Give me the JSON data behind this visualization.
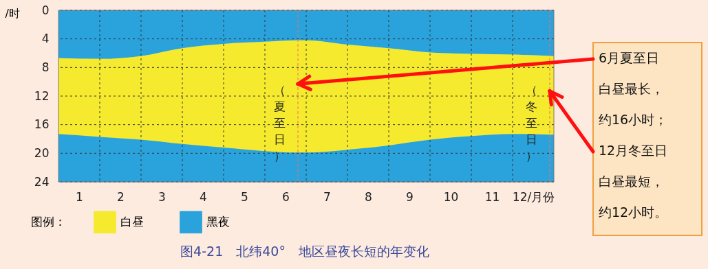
{
  "chart_data": {
    "type": "area",
    "stacked": true,
    "title": "图4-21　北纬40°　地区昼夜长短的年变化",
    "ylabel": "/时",
    "legend_title": "图例：",
    "legend": "bottom left",
    "grid": true,
    "x": [
      0,
      1,
      2,
      3,
      4,
      5,
      5.8,
      6,
      7,
      8,
      9,
      10,
      11,
      12
    ],
    "xlim": [
      0,
      12
    ],
    "xticks": [
      {
        "value": 0.5,
        "label": "1"
      },
      {
        "value": 1,
        "label": null
      },
      {
        "value": 1.5,
        "label": "2"
      },
      {
        "value": 2,
        "label": null
      },
      {
        "value": 2.5,
        "label": "3"
      },
      {
        "value": 3,
        "label": null
      },
      {
        "value": 3.5,
        "label": "4"
      },
      {
        "value": 4,
        "label": null
      },
      {
        "value": 4.5,
        "label": "5"
      },
      {
        "value": 5,
        "label": null
      },
      {
        "value": 5.5,
        "label": "6"
      },
      {
        "value": 6,
        "label": null
      },
      {
        "value": 6.5,
        "label": "7"
      },
      {
        "value": 7,
        "label": null
      },
      {
        "value": 7.5,
        "label": "8"
      },
      {
        "value": 8,
        "label": null
      },
      {
        "value": 8.5,
        "label": "9"
      },
      {
        "value": 9,
        "label": null
      },
      {
        "value": 9.5,
        "label": "10"
      },
      {
        "value": 10,
        "label": null
      },
      {
        "value": 10.5,
        "label": "11"
      },
      {
        "value": 11,
        "label": null
      },
      {
        "value": 11.5,
        "label": "12/月份"
      }
    ],
    "ylim": [
      24,
      0
    ],
    "yticks": [
      0,
      4,
      8,
      12,
      16,
      20,
      24
    ],
    "series": [
      {
        "color": "#2aa3dc",
        "values": [
          6.7,
          6.8,
          6.4,
          5.3,
          4.7,
          4.4,
          4.2,
          4.2,
          4.8,
          5.3,
          5.9,
          6.1,
          6.2,
          6.4
        ]
      },
      {
        "name": "白昼",
        "color": "#f5ea2e",
        "values": [
          10.6,
          10.9,
          11.7,
          13.4,
          14.5,
          15.3,
          15.7,
          15.7,
          14.7,
          13.6,
          12.2,
          11.5,
          11.1,
          11.0
        ]
      },
      {
        "name": "黑夜",
        "color": "#2aa3dc",
        "values": [
          6.7,
          6.3,
          5.9,
          5.3,
          4.8,
          4.3,
          4.1,
          4.1,
          4.5,
          5.1,
          5.9,
          6.4,
          6.7,
          6.6
        ]
      }
    ],
    "ref_lines": [
      {
        "axis": "x",
        "value": 5.8,
        "label": "（夏至日）",
        "color": "#f07060",
        "line_style": "dashed"
      },
      {
        "axis": "x",
        "value": 11.9,
        "label": "（冬至日）",
        "color": "#f07060",
        "line_style": "dashed"
      }
    ],
    "annotations": [
      {
        "text": "6月夏至日",
        "x": 5.8,
        "y": 10.3
      },
      "白昼最长，",
      "约16小时；",
      {
        "text": "12月冬至日",
        "x": 11.9,
        "y": 11.3
      },
      "白昼最短，",
      "约12小时。"
    ]
  }
}
